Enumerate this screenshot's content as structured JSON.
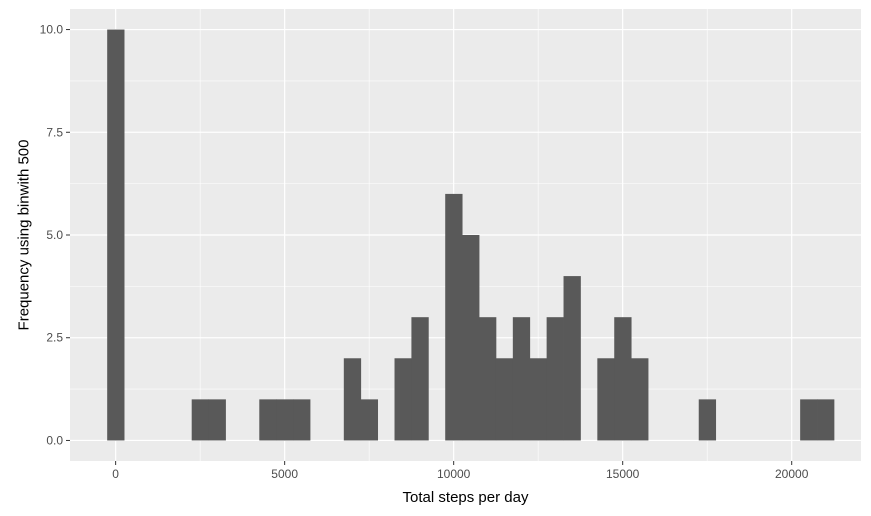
{
  "chart_data": {
    "type": "bar",
    "xlabel": "Total steps per day",
    "ylabel": "Frequency using binwith 500",
    "binwidth": 500,
    "xlim": [
      -1350,
      22050
    ],
    "ylim": [
      -0.5,
      10.5
    ],
    "xticks": [
      0,
      5000,
      10000,
      15000,
      20000
    ],
    "xtick_labels": [
      "0",
      "5000",
      "10000",
      "15000",
      "20000"
    ],
    "yticks": [
      0,
      2.5,
      5,
      7.5,
      10
    ],
    "ytick_labels": [
      "0.0",
      "2.5",
      "5.0",
      "7.5",
      "10.0"
    ],
    "grid": true,
    "legend": "none",
    "bar_color": "#595959",
    "panel_color": "#ebebeb",
    "grid_color": "#ffffff",
    "bins": [
      {
        "center": 0,
        "count": 10
      },
      {
        "center": 2500,
        "count": 1
      },
      {
        "center": 3000,
        "count": 1
      },
      {
        "center": 4500,
        "count": 1
      },
      {
        "center": 5000,
        "count": 1
      },
      {
        "center": 5500,
        "count": 1
      },
      {
        "center": 7000,
        "count": 2
      },
      {
        "center": 7500,
        "count": 1
      },
      {
        "center": 8500,
        "count": 2
      },
      {
        "center": 9000,
        "count": 3
      },
      {
        "center": 10000,
        "count": 6
      },
      {
        "center": 10500,
        "count": 5
      },
      {
        "center": 11000,
        "count": 3
      },
      {
        "center": 11500,
        "count": 2
      },
      {
        "center": 12000,
        "count": 3
      },
      {
        "center": 12500,
        "count": 2
      },
      {
        "center": 13000,
        "count": 3
      },
      {
        "center": 13500,
        "count": 4
      },
      {
        "center": 14500,
        "count": 2
      },
      {
        "center": 15000,
        "count": 3
      },
      {
        "center": 15500,
        "count": 2
      },
      {
        "center": 17500,
        "count": 1
      },
      {
        "center": 20500,
        "count": 1
      },
      {
        "center": 21000,
        "count": 1
      }
    ]
  }
}
